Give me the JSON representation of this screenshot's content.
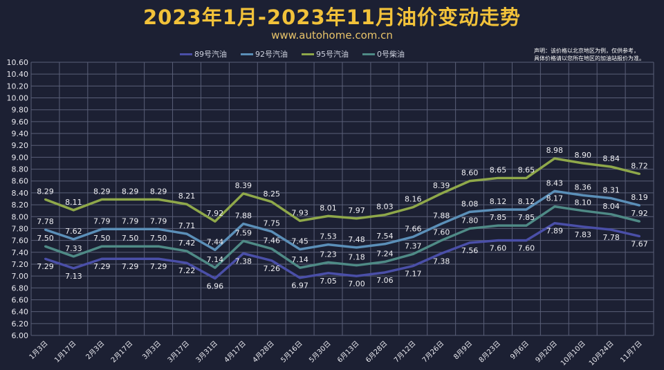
{
  "chart_data": {
    "type": "line",
    "title": "2023年1月-2023年11月油价变动走势",
    "subtitle": "www.autohome.com.cn",
    "note": [
      "声明：该价格以北京地区为例，仅供参考，",
      "具体价格请以您所在地区的加油站报价为准。"
    ],
    "legend_position": "top",
    "grid": true,
    "ylim": [
      6.0,
      10.6
    ],
    "ytick_step": 0.2,
    "categories": [
      "1月3日",
      "1月17日",
      "2月3日",
      "2月17日",
      "3月3日",
      "3月17日",
      "3月31日",
      "4月17日",
      "4月28日",
      "5月16日",
      "5月30日",
      "6月13日",
      "6月28日",
      "7月12日",
      "7月26日",
      "8月9日",
      "8月23日",
      "9月6日",
      "9月20日",
      "10月10日",
      "10月24日",
      "11月7日"
    ],
    "series": [
      {
        "name": "89号汽油",
        "color": "#4a4fa8",
        "label_pos": "below",
        "values": [
          7.29,
          7.13,
          7.29,
          7.29,
          7.29,
          7.22,
          6.96,
          7.38,
          7.26,
          6.97,
          7.05,
          7.0,
          7.06,
          7.17,
          7.38,
          7.56,
          7.6,
          7.6,
          7.89,
          7.83,
          7.78,
          7.67
        ]
      },
      {
        "name": "92号汽油",
        "color": "#5b8fb8",
        "label_pos": "above",
        "values": [
          7.78,
          7.62,
          7.79,
          7.79,
          7.79,
          7.71,
          7.44,
          7.88,
          7.75,
          7.45,
          7.53,
          7.48,
          7.54,
          7.66,
          7.88,
          8.08,
          8.12,
          8.12,
          8.43,
          8.36,
          8.31,
          8.19
        ]
      },
      {
        "name": "95号汽油",
        "color": "#8fa84a",
        "label_pos": "above",
        "values": [
          8.29,
          8.11,
          8.29,
          8.29,
          8.29,
          8.21,
          7.92,
          8.39,
          8.25,
          7.93,
          8.01,
          7.97,
          8.03,
          8.16,
          8.39,
          8.6,
          8.65,
          8.65,
          8.98,
          8.9,
          8.84,
          8.72
        ]
      },
      {
        "name": "0号柴油",
        "color": "#4f8a86",
        "label_pos": "above",
        "values": [
          7.5,
          7.33,
          7.5,
          7.5,
          7.5,
          7.42,
          7.14,
          7.59,
          7.46,
          7.14,
          7.23,
          7.18,
          7.24,
          7.37,
          7.6,
          7.8,
          7.85,
          7.85,
          8.17,
          8.1,
          8.04,
          7.92
        ]
      }
    ]
  }
}
